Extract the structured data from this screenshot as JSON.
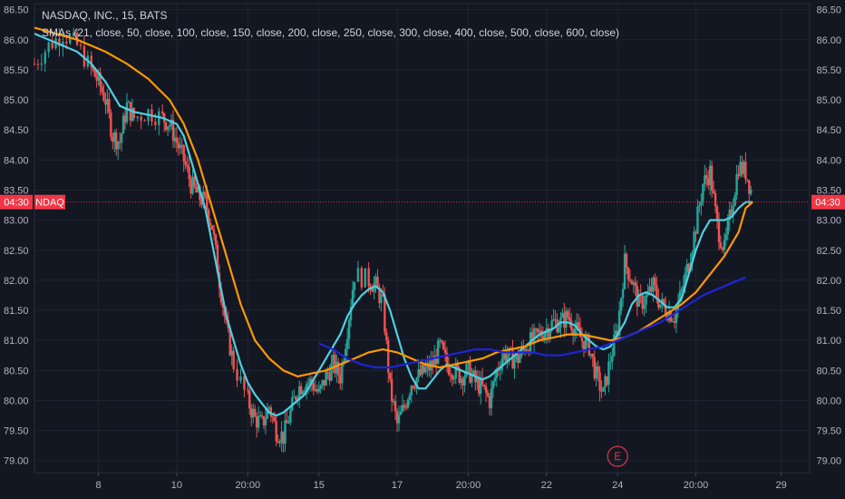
{
  "legend": {
    "symbol_line": "NASDAQ, INC., 15, BATS",
    "indicator_line": "SMAs (21, close, 50, close, 100, close, 150, close, 200, close, 250, close, 300, close, 400, close, 500, close, 600, close)"
  },
  "price_tag": {
    "left_label": "04:30",
    "symbol": "NDAQ",
    "right_label": "04:30",
    "value": 83.3,
    "color": "#f23645"
  },
  "earnings_marker": {
    "label": "E",
    "x_label": "24"
  },
  "colors": {
    "background": "#131722",
    "up": "#26a69a",
    "down": "#ef5350",
    "sma_fast": "#4dd0e1",
    "sma_mid": "#ff9800",
    "sma_slow": "#1f24d6",
    "grid": "#1f2433",
    "axis_text": "#b2b5be"
  },
  "chart_data": {
    "type": "candlestick",
    "title": "NASDAQ, INC., 15, BATS",
    "ylim": [
      78.8,
      86.6
    ],
    "y_ticks": [
      "79.00",
      "79.50",
      "80.00",
      "80.50",
      "81.00",
      "81.50",
      "82.00",
      "82.50",
      "83.00",
      "83.50",
      "84.00",
      "84.50",
      "85.00",
      "85.50",
      "86.00",
      "86.50"
    ],
    "x_ticks": [
      "8",
      "10",
      "20:00",
      "15",
      "17",
      "20:00",
      "22",
      "24",
      "20:00",
      "29"
    ],
    "x_tick_positions": [
      0.09,
      0.2,
      0.3,
      0.4,
      0.51,
      0.61,
      0.72,
      0.82,
      0.93,
      1.05
    ],
    "x_range": [
      0,
      1.09
    ],
    "price_path": [
      [
        0.0,
        85.6
      ],
      [
        0.02,
        85.9
      ],
      [
        0.04,
        86.1
      ],
      [
        0.06,
        85.9
      ],
      [
        0.08,
        85.5
      ],
      [
        0.09,
        85.3
      ],
      [
        0.1,
        85.0
      ],
      [
        0.11,
        84.4
      ],
      [
        0.12,
        84.3
      ],
      [
        0.13,
        84.9
      ],
      [
        0.14,
        84.7
      ],
      [
        0.16,
        84.8
      ],
      [
        0.18,
        84.7
      ],
      [
        0.19,
        84.6
      ],
      [
        0.2,
        84.3
      ],
      [
        0.21,
        84.0
      ],
      [
        0.22,
        83.6
      ],
      [
        0.23,
        83.4
      ],
      [
        0.24,
        83.3
      ],
      [
        0.25,
        82.9
      ],
      [
        0.26,
        82.0
      ],
      [
        0.27,
        81.2
      ],
      [
        0.28,
        80.6
      ],
      [
        0.3,
        80.0
      ],
      [
        0.31,
        79.7
      ],
      [
        0.32,
        79.6
      ],
      [
        0.33,
        79.9
      ],
      [
        0.34,
        79.5
      ],
      [
        0.35,
        79.4
      ],
      [
        0.36,
        79.8
      ],
      [
        0.37,
        80.2
      ],
      [
        0.38,
        80.3
      ],
      [
        0.39,
        80.3
      ],
      [
        0.4,
        80.1
      ],
      [
        0.41,
        80.4
      ],
      [
        0.42,
        80.6
      ],
      [
        0.43,
        80.4
      ],
      [
        0.44,
        81.2
      ],
      [
        0.45,
        82.1
      ],
      [
        0.47,
        82.0
      ],
      [
        0.48,
        81.9
      ],
      [
        0.49,
        81.6
      ],
      [
        0.5,
        80.2
      ],
      [
        0.51,
        79.6
      ],
      [
        0.52,
        79.9
      ],
      [
        0.53,
        80.3
      ],
      [
        0.54,
        80.4
      ],
      [
        0.55,
        80.5
      ],
      [
        0.56,
        80.6
      ],
      [
        0.57,
        80.9
      ],
      [
        0.58,
        80.6
      ],
      [
        0.59,
        80.5
      ],
      [
        0.6,
        80.4
      ],
      [
        0.61,
        80.5
      ],
      [
        0.62,
        80.3
      ],
      [
        0.63,
        80.2
      ],
      [
        0.64,
        80.0
      ],
      [
        0.65,
        80.5
      ],
      [
        0.66,
        80.8
      ],
      [
        0.67,
        80.7
      ],
      [
        0.68,
        80.7
      ],
      [
        0.69,
        80.9
      ],
      [
        0.7,
        81.0
      ],
      [
        0.71,
        81.1
      ],
      [
        0.72,
        81.2
      ],
      [
        0.73,
        81.3
      ],
      [
        0.74,
        81.3
      ],
      [
        0.75,
        81.4
      ],
      [
        0.76,
        81.2
      ],
      [
        0.77,
        81.0
      ],
      [
        0.78,
        80.9
      ],
      [
        0.79,
        80.4
      ],
      [
        0.8,
        80.1
      ],
      [
        0.81,
        80.7
      ],
      [
        0.82,
        81.2
      ],
      [
        0.83,
        82.3
      ],
      [
        0.84,
        82.0
      ],
      [
        0.85,
        81.6
      ],
      [
        0.86,
        81.7
      ],
      [
        0.87,
        81.9
      ],
      [
        0.88,
        81.6
      ],
      [
        0.89,
        81.5
      ],
      [
        0.9,
        81.4
      ],
      [
        0.91,
        81.8
      ],
      [
        0.92,
        82.3
      ],
      [
        0.93,
        82.9
      ],
      [
        0.94,
        83.6
      ],
      [
        0.95,
        83.8
      ],
      [
        0.96,
        82.9
      ],
      [
        0.97,
        82.5
      ],
      [
        0.98,
        83.2
      ],
      [
        0.99,
        83.9
      ],
      [
        1.0,
        83.8
      ],
      [
        1.01,
        83.4
      ]
    ],
    "series": [
      {
        "name": "SMA 21",
        "color": "#4dd0e1",
        "points": [
          [
            0.0,
            86.1
          ],
          [
            0.02,
            86.0
          ],
          [
            0.04,
            85.9
          ],
          [
            0.06,
            85.8
          ],
          [
            0.08,
            85.6
          ],
          [
            0.1,
            85.3
          ],
          [
            0.12,
            84.9
          ],
          [
            0.14,
            84.8
          ],
          [
            0.16,
            84.75
          ],
          [
            0.18,
            84.7
          ],
          [
            0.2,
            84.6
          ],
          [
            0.21,
            84.4
          ],
          [
            0.22,
            84.0
          ],
          [
            0.23,
            83.6
          ],
          [
            0.24,
            83.2
          ],
          [
            0.25,
            82.6
          ],
          [
            0.26,
            82.0
          ],
          [
            0.27,
            81.4
          ],
          [
            0.28,
            81.0
          ],
          [
            0.29,
            80.6
          ],
          [
            0.3,
            80.3
          ],
          [
            0.31,
            80.1
          ],
          [
            0.32,
            79.95
          ],
          [
            0.33,
            79.8
          ],
          [
            0.34,
            79.75
          ],
          [
            0.35,
            79.8
          ],
          [
            0.36,
            79.9
          ],
          [
            0.37,
            80.0
          ],
          [
            0.38,
            80.1
          ],
          [
            0.39,
            80.3
          ],
          [
            0.4,
            80.5
          ],
          [
            0.41,
            80.7
          ],
          [
            0.42,
            80.9
          ],
          [
            0.43,
            81.1
          ],
          [
            0.44,
            81.4
          ],
          [
            0.45,
            81.6
          ],
          [
            0.46,
            81.75
          ],
          [
            0.47,
            81.85
          ],
          [
            0.48,
            81.9
          ],
          [
            0.49,
            81.8
          ],
          [
            0.5,
            81.5
          ],
          [
            0.51,
            81.1
          ],
          [
            0.52,
            80.7
          ],
          [
            0.53,
            80.4
          ],
          [
            0.54,
            80.2
          ],
          [
            0.55,
            80.2
          ],
          [
            0.56,
            80.35
          ],
          [
            0.57,
            80.5
          ],
          [
            0.58,
            80.6
          ],
          [
            0.59,
            80.55
          ],
          [
            0.6,
            80.5
          ],
          [
            0.61,
            80.45
          ],
          [
            0.62,
            80.4
          ],
          [
            0.63,
            80.35
          ],
          [
            0.64,
            80.4
          ],
          [
            0.65,
            80.5
          ],
          [
            0.66,
            80.6
          ],
          [
            0.67,
            80.7
          ],
          [
            0.68,
            80.8
          ],
          [
            0.69,
            80.9
          ],
          [
            0.7,
            81.0
          ],
          [
            0.71,
            81.1
          ],
          [
            0.72,
            81.15
          ],
          [
            0.73,
            81.2
          ],
          [
            0.74,
            81.3
          ],
          [
            0.75,
            81.3
          ],
          [
            0.76,
            81.25
          ],
          [
            0.77,
            81.1
          ],
          [
            0.78,
            81.0
          ],
          [
            0.79,
            80.9
          ],
          [
            0.8,
            80.85
          ],
          [
            0.81,
            80.9
          ],
          [
            0.82,
            81.1
          ],
          [
            0.83,
            81.3
          ],
          [
            0.84,
            81.6
          ],
          [
            0.85,
            81.75
          ],
          [
            0.86,
            81.8
          ],
          [
            0.87,
            81.75
          ],
          [
            0.88,
            81.65
          ],
          [
            0.89,
            81.55
          ],
          [
            0.9,
            81.55
          ],
          [
            0.91,
            81.7
          ],
          [
            0.92,
            82.1
          ],
          [
            0.93,
            82.5
          ],
          [
            0.94,
            82.8
          ],
          [
            0.95,
            83.0
          ],
          [
            0.96,
            83.0
          ],
          [
            0.97,
            83.0
          ],
          [
            0.98,
            83.05
          ],
          [
            0.99,
            83.2
          ],
          [
            1.0,
            83.3
          ],
          [
            1.01,
            83.3
          ]
        ]
      },
      {
        "name": "SMA 50",
        "color": "#ff9800",
        "points": [
          [
            0.0,
            86.2
          ],
          [
            0.03,
            86.1
          ],
          [
            0.06,
            86.0
          ],
          [
            0.08,
            85.9
          ],
          [
            0.1,
            85.8
          ],
          [
            0.13,
            85.6
          ],
          [
            0.16,
            85.35
          ],
          [
            0.19,
            85.0
          ],
          [
            0.21,
            84.6
          ],
          [
            0.23,
            84.0
          ],
          [
            0.25,
            83.2
          ],
          [
            0.27,
            82.4
          ],
          [
            0.29,
            81.6
          ],
          [
            0.31,
            81.0
          ],
          [
            0.33,
            80.7
          ],
          [
            0.35,
            80.5
          ],
          [
            0.37,
            80.4
          ],
          [
            0.39,
            80.45
          ],
          [
            0.41,
            80.5
          ],
          [
            0.43,
            80.6
          ],
          [
            0.45,
            80.7
          ],
          [
            0.47,
            80.8
          ],
          [
            0.49,
            80.85
          ],
          [
            0.51,
            80.8
          ],
          [
            0.53,
            80.7
          ],
          [
            0.55,
            80.6
          ],
          [
            0.57,
            80.55
          ],
          [
            0.59,
            80.6
          ],
          [
            0.61,
            80.65
          ],
          [
            0.63,
            80.7
          ],
          [
            0.65,
            80.8
          ],
          [
            0.67,
            80.85
          ],
          [
            0.69,
            80.9
          ],
          [
            0.71,
            81.0
          ],
          [
            0.73,
            81.05
          ],
          [
            0.75,
            81.1
          ],
          [
            0.77,
            81.1
          ],
          [
            0.79,
            81.05
          ],
          [
            0.81,
            81.0
          ],
          [
            0.83,
            81.05
          ],
          [
            0.85,
            81.15
          ],
          [
            0.87,
            81.3
          ],
          [
            0.89,
            81.45
          ],
          [
            0.91,
            81.6
          ],
          [
            0.93,
            81.8
          ],
          [
            0.95,
            82.1
          ],
          [
            0.97,
            82.4
          ],
          [
            0.99,
            82.8
          ],
          [
            1.0,
            83.2
          ],
          [
            1.01,
            83.3
          ]
        ]
      },
      {
        "name": "SMA 100",
        "color": "#1f24d6",
        "points": [
          [
            0.4,
            80.95
          ],
          [
            0.42,
            80.85
          ],
          [
            0.44,
            80.7
          ],
          [
            0.46,
            80.6
          ],
          [
            0.48,
            80.55
          ],
          [
            0.5,
            80.55
          ],
          [
            0.52,
            80.6
          ],
          [
            0.54,
            80.65
          ],
          [
            0.56,
            80.7
          ],
          [
            0.58,
            80.75
          ],
          [
            0.6,
            80.8
          ],
          [
            0.62,
            80.85
          ],
          [
            0.64,
            80.85
          ],
          [
            0.66,
            80.8
          ],
          [
            0.68,
            80.8
          ],
          [
            0.7,
            80.8
          ],
          [
            0.72,
            80.75
          ],
          [
            0.74,
            80.75
          ],
          [
            0.76,
            80.8
          ],
          [
            0.78,
            80.85
          ],
          [
            0.8,
            80.9
          ],
          [
            0.82,
            81.0
          ],
          [
            0.84,
            81.1
          ],
          [
            0.86,
            81.2
          ],
          [
            0.88,
            81.3
          ],
          [
            0.9,
            81.45
          ],
          [
            0.92,
            81.6
          ],
          [
            0.94,
            81.75
          ],
          [
            0.96,
            81.85
          ],
          [
            0.98,
            81.95
          ],
          [
            1.0,
            82.05
          ]
        ]
      }
    ]
  }
}
